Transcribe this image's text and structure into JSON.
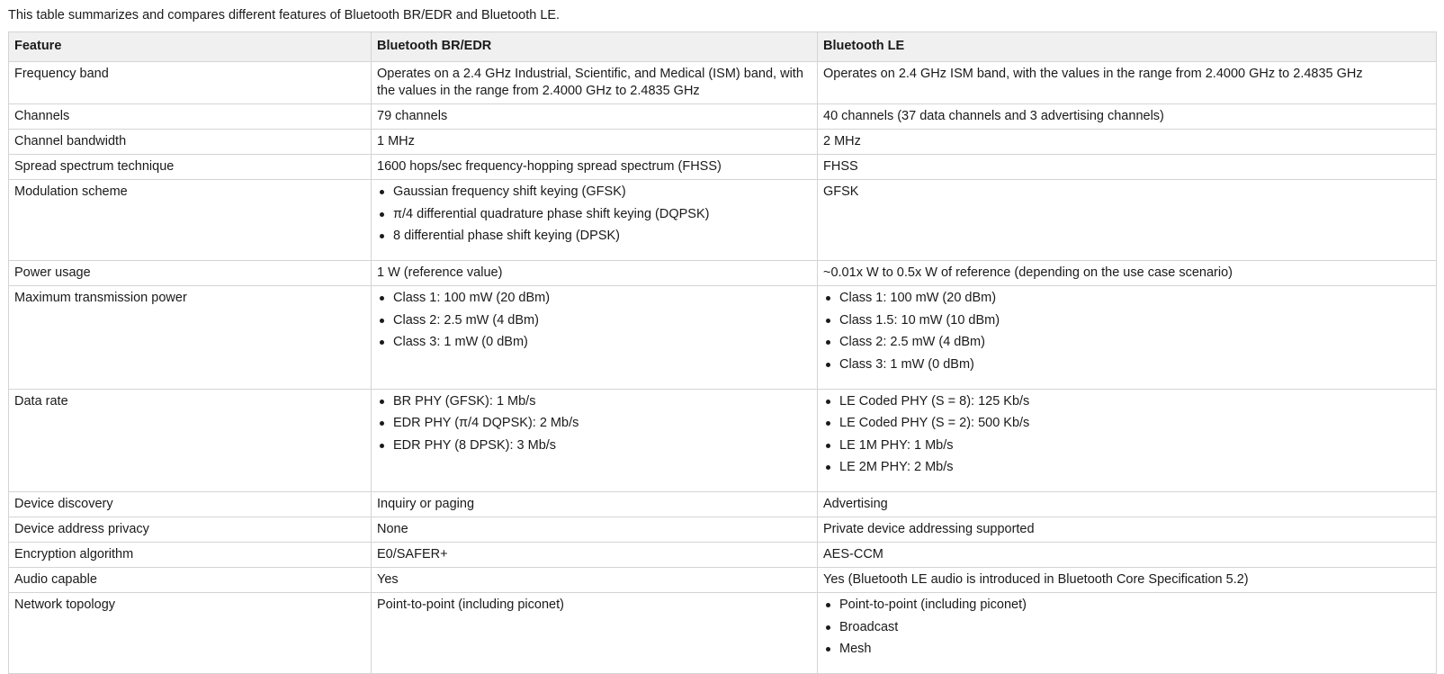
{
  "intro": "This table summarizes and compares different features of Bluetooth BR/EDR and Bluetooth LE.",
  "table": {
    "headers": [
      "Feature",
      "Bluetooth BR/EDR",
      "Bluetooth LE"
    ],
    "rows": [
      {
        "feature": "Frequency band",
        "bredr": "Operates on a 2.4 GHz Industrial, Scientific, and Medical (ISM) band, with the values in the range from 2.4000 GHz to 2.4835 GHz",
        "le": "Operates on 2.4 GHz ISM band, with the values in the range from 2.4000 GHz to 2.4835 GHz"
      },
      {
        "feature": "Channels",
        "bredr": "79 channels",
        "le": "40 channels (37 data channels and 3 advertising channels)"
      },
      {
        "feature": "Channel bandwidth",
        "bredr": "1 MHz",
        "le": "2 MHz"
      },
      {
        "feature": "Spread spectrum technique",
        "bredr": "1600 hops/sec frequency-hopping spread spectrum (FHSS)",
        "le": "FHSS"
      },
      {
        "feature": "Modulation scheme",
        "bredr": [
          "Gaussian frequency shift keying (GFSK)",
          "π/4 differential quadrature phase shift keying (DQPSK)",
          "8 differential phase shift keying (DPSK)"
        ],
        "le": "GFSK"
      },
      {
        "feature": "Power usage",
        "bredr": "1 W (reference value)",
        "le": "~0.01x W to 0.5x W of reference (depending on the use case scenario)"
      },
      {
        "feature": "Maximum transmission power",
        "bredr": [
          "Class 1: 100 mW (20 dBm)",
          "Class 2: 2.5 mW (4 dBm)",
          "Class 3: 1 mW (0 dBm)"
        ],
        "le": [
          "Class 1: 100 mW (20 dBm)",
          "Class 1.5: 10 mW (10 dBm)",
          "Class 2: 2.5 mW (4 dBm)",
          "Class 3: 1 mW (0 dBm)"
        ]
      },
      {
        "feature": "Data rate",
        "bredr": [
          "BR PHY (GFSK): 1 Mb/s",
          "EDR PHY (π/4 DQPSK): 2 Mb/s",
          "EDR PHY (8 DPSK): 3 Mb/s"
        ],
        "le": [
          "LE Coded PHY (S = 8): 125 Kb/s",
          "LE Coded PHY (S = 2): 500 Kb/s",
          "LE 1M PHY: 1 Mb/s",
          "LE 2M PHY: 2 Mb/s"
        ]
      },
      {
        "feature": "Device discovery",
        "bredr": "Inquiry or paging",
        "le": "Advertising"
      },
      {
        "feature": "Device address privacy",
        "bredr": "None",
        "le": "Private device addressing supported"
      },
      {
        "feature": "Encryption algorithm",
        "bredr": "E0/SAFER+",
        "le": "AES-CCM"
      },
      {
        "feature": "Audio capable",
        "bredr": "Yes",
        "le": "Yes (Bluetooth LE audio is introduced in Bluetooth Core Specification 5.2)"
      },
      {
        "feature": "Network topology",
        "bredr": "Point-to-point (including piconet)",
        "le": [
          "Point-to-point (including piconet)",
          "Broadcast",
          "Mesh"
        ]
      }
    ]
  }
}
